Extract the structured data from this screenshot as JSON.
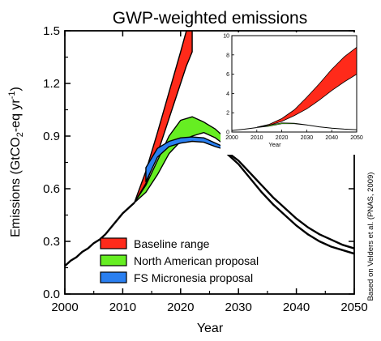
{
  "chart_data": {
    "type": "area",
    "title": "GWP-weighted emissions",
    "xlabel": "Year",
    "ylabel_parts": [
      "Emissions (GtCO",
      "2",
      "-eq yr",
      "-1",
      ")"
    ],
    "xlim": [
      2000,
      2050
    ],
    "ylim": [
      0,
      1.5
    ],
    "x_ticks": [
      "2000",
      "2010",
      "2020",
      "2030",
      "2040",
      "2050"
    ],
    "y_ticks": [
      "0.0",
      "0.3",
      "0.6",
      "0.9",
      "1.2",
      "1.5"
    ],
    "grid": false,
    "legend_position": "bottom-left",
    "source_note": "Based on Velders et al. (PNAS, 2009)",
    "colors": {
      "baseline": "#ff2a1a",
      "north_american": "#66ee22",
      "micronesia": "#2a7ff0",
      "line": "#000000"
    },
    "history": {
      "x": [
        2000,
        2001,
        2002,
        2003,
        2004,
        2005,
        2006,
        2007,
        2008,
        2009,
        2010,
        2011,
        2012
      ],
      "y": [
        0.16,
        0.19,
        0.21,
        0.24,
        0.26,
        0.29,
        0.31,
        0.34,
        0.38,
        0.42,
        0.46,
        0.49,
        0.52
      ]
    },
    "series": [
      {
        "name": "Baseline range",
        "key": "baseline",
        "x": [
          2012,
          2014,
          2016,
          2018,
          2020,
          2021,
          2022
        ],
        "upper": [
          0.52,
          0.7,
          0.92,
          1.15,
          1.38,
          1.5,
          1.56
        ],
        "lower": [
          0.52,
          0.63,
          0.8,
          1.0,
          1.2,
          1.3,
          1.38
        ]
      },
      {
        "name": "North American proposal",
        "key": "north_american",
        "x": [
          2012,
          2014,
          2016,
          2018,
          2020,
          2022,
          2024,
          2026,
          2028,
          2030
        ],
        "upper": [
          0.52,
          0.62,
          0.76,
          0.9,
          0.99,
          1.01,
          0.98,
          0.94,
          0.88,
          0.81
        ],
        "lower": [
          0.52,
          0.58,
          0.68,
          0.8,
          0.87,
          0.9,
          0.92,
          0.89,
          0.84,
          0.8
        ]
      },
      {
        "name": "FS Micronesia proposal",
        "key": "micronesia",
        "x": [
          2014,
          2016,
          2018,
          2020,
          2022,
          2024,
          2026,
          2028
        ],
        "upper": [
          0.72,
          0.83,
          0.87,
          0.89,
          0.895,
          0.89,
          0.86,
          0.83
        ],
        "lower": [
          0.64,
          0.78,
          0.84,
          0.86,
          0.87,
          0.865,
          0.84,
          0.82
        ]
      }
    ],
    "decline_lines": [
      {
        "x": [
          2028,
          2030,
          2032,
          2034,
          2036,
          2038,
          2040,
          2042,
          2044,
          2046,
          2048,
          2050
        ],
        "y": [
          0.81,
          0.76,
          0.69,
          0.62,
          0.55,
          0.49,
          0.43,
          0.38,
          0.34,
          0.31,
          0.28,
          0.26
        ]
      },
      {
        "x": [
          2028,
          2030,
          2032,
          2034,
          2036,
          2038,
          2040,
          2042,
          2044,
          2046,
          2048,
          2050
        ],
        "y": [
          0.8,
          0.74,
          0.66,
          0.58,
          0.51,
          0.45,
          0.39,
          0.34,
          0.3,
          0.27,
          0.25,
          0.23
        ]
      }
    ],
    "inset": {
      "xlabel": "Year",
      "xlim": [
        2000,
        2050
      ],
      "ylim": [
        0,
        10
      ],
      "x_ticks": [
        "2000",
        "2010",
        "2020",
        "2030",
        "2040",
        "2050"
      ],
      "y_ticks": [
        "0",
        "2",
        "4",
        "6",
        "8",
        "10"
      ],
      "baseline": {
        "x": [
          2010,
          2015,
          2020,
          2025,
          2030,
          2035,
          2040,
          2045,
          2050
        ],
        "upper": [
          0.5,
          0.8,
          1.4,
          2.3,
          3.6,
          5.0,
          6.5,
          7.8,
          8.8
        ],
        "lower": [
          0.5,
          0.7,
          1.1,
          1.7,
          2.4,
          3.3,
          4.3,
          5.2,
          6.0
        ]
      },
      "history": {
        "x": [
          2000,
          2005,
          2010
        ],
        "y": [
          0.16,
          0.29,
          0.46
        ]
      },
      "proposals": {
        "x": [
          2010,
          2015,
          2020,
          2025,
          2030,
          2035,
          2040,
          2045,
          2050
        ],
        "upper": [
          0.46,
          0.7,
          0.95,
          0.92,
          0.75,
          0.55,
          0.42,
          0.32,
          0.25
        ],
        "lower": [
          0.46,
          0.6,
          0.85,
          0.86,
          0.72,
          0.52,
          0.38,
          0.29,
          0.22
        ]
      }
    }
  }
}
